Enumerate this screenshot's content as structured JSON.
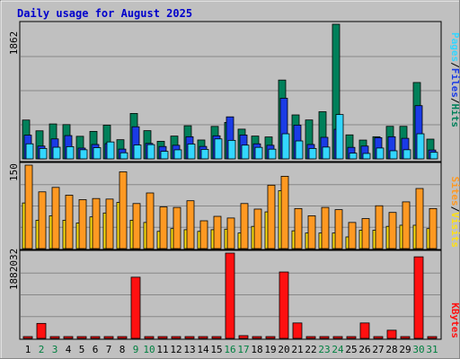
{
  "title": "Daily usage for August 2025",
  "colors": {
    "hits": "#00805a",
    "files": "#1a3be6",
    "pages": "#33d6ff",
    "visits": "#ff9922",
    "sites": "#ffe012",
    "kbytes": "#ff1010",
    "weekday_label": "#000000",
    "weekend_label": "#008040",
    "title": "#0000cc",
    "panel_bg": "#c0c0c0"
  },
  "chart_data": [
    {
      "type": "bar",
      "name_panel": "hits_files_pages",
      "y_tick_label": "1862",
      "ylim": [
        0,
        1862
      ],
      "legend": [
        "Pages",
        "/",
        "Files",
        "/",
        "Hits"
      ],
      "categories": [
        "1",
        "2",
        "3",
        "4",
        "5",
        "6",
        "7",
        "8",
        "9",
        "10",
        "11",
        "12",
        "13",
        "14",
        "15",
        "16",
        "17",
        "18",
        "19",
        "20",
        "21",
        "22",
        "23",
        "24",
        "25",
        "26",
        "27",
        "28",
        "29",
        "30",
        "31"
      ],
      "series": [
        {
          "name": "Hits",
          "values": [
            537,
            388,
            483,
            474,
            312,
            380,
            466,
            265,
            628,
            390,
            243,
            315,
            458,
            261,
            449,
            504,
            411,
            315,
            303,
            1090,
            608,
            538,
            652,
            1862,
            332,
            260,
            306,
            450,
            450,
            1056,
            273
          ]
        },
        {
          "name": "Files",
          "values": [
            328,
            177,
            276,
            322,
            149,
            199,
            211,
            135,
            444,
            214,
            171,
            188,
            306,
            172,
            319,
            581,
            330,
            208,
            188,
            838,
            467,
            199,
            298,
            409,
            159,
            177,
            293,
            306,
            284,
            736,
            122
          ]
        },
        {
          "name": "Pages",
          "values": [
            208,
            144,
            161,
            169,
            126,
            155,
            234,
            84,
            192,
            197,
            104,
            125,
            205,
            131,
            276,
            256,
            190,
            159,
            134,
            347,
            248,
            144,
            163,
            613,
            79,
            75,
            150,
            112,
            126,
            347,
            91
          ]
        }
      ]
    },
    {
      "type": "bar",
      "name_panel": "visits_sites",
      "y_tick_label": "150",
      "ylim": [
        0,
        150
      ],
      "legend": [
        "Sites",
        "/",
        "Visits"
      ],
      "categories": [
        "1",
        "2",
        "3",
        "4",
        "5",
        "6",
        "7",
        "8",
        "9",
        "10",
        "11",
        "12",
        "13",
        "14",
        "15",
        "16",
        "17",
        "18",
        "19",
        "20",
        "21",
        "22",
        "23",
        "24",
        "25",
        "26",
        "27",
        "28",
        "29",
        "30",
        "31"
      ],
      "series": [
        {
          "name": "Visits",
          "values": [
            150,
            102,
            110,
            96,
            88,
            90,
            89,
            138,
            81,
            100,
            75,
            74,
            86,
            50,
            58,
            55,
            81,
            71,
            114,
            130,
            72,
            59,
            74,
            70,
            47,
            54,
            77,
            65,
            84,
            108,
            72
          ]
        },
        {
          "name": "Sites",
          "values": [
            82,
            51,
            59,
            51,
            46,
            57,
            64,
            83,
            51,
            47,
            31,
            36,
            34,
            31,
            34,
            35,
            28,
            40,
            66,
            104,
            32,
            28,
            28,
            28,
            21,
            33,
            33,
            40,
            42,
            42,
            36
          ]
        }
      ]
    },
    {
      "type": "bar",
      "name_panel": "kbytes",
      "y_tick_label": "1882032",
      "ylim": [
        0,
        1882032
      ],
      "legend": [
        "KBytes"
      ],
      "categories": [
        "1",
        "2",
        "3",
        "4",
        "5",
        "6",
        "7",
        "8",
        "9",
        "10",
        "11",
        "12",
        "13",
        "14",
        "15",
        "16",
        "17",
        "18",
        "19",
        "20",
        "21",
        "22",
        "23",
        "24",
        "25",
        "26",
        "27",
        "28",
        "29",
        "30",
        "31"
      ],
      "series": [
        {
          "name": "KBytes",
          "values": [
            38000,
            330000,
            2000,
            2000,
            2000,
            2000,
            2000,
            2000,
            1350000,
            2000,
            2000,
            2000,
            2000,
            2000,
            2000,
            1882032,
            60000,
            2000,
            2000,
            1465000,
            340000,
            16000,
            40000,
            16000,
            2000,
            340000,
            2000,
            180000,
            2000,
            1800000,
            2000
          ]
        }
      ]
    }
  ],
  "days": [
    "1",
    "2",
    "3",
    "4",
    "5",
    "6",
    "7",
    "8",
    "9",
    "10",
    "11",
    "12",
    "13",
    "14",
    "15",
    "16",
    "17",
    "18",
    "19",
    "20",
    "21",
    "22",
    "23",
    "24",
    "25",
    "26",
    "27",
    "28",
    "29",
    "30",
    "31"
  ],
  "weekend_days": [
    "2",
    "3",
    "9",
    "10",
    "16",
    "17",
    "23",
    "24",
    "30",
    "31"
  ]
}
